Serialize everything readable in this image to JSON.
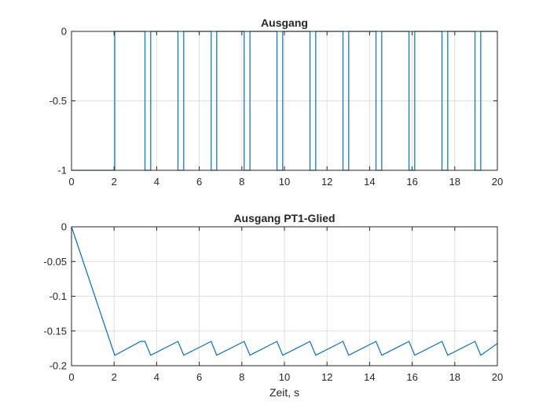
{
  "chart_data": [
    {
      "type": "line",
      "title": "Ausgang",
      "xlabel": "",
      "ylabel": "",
      "xlim": [
        0,
        20
      ],
      "ylim": [
        -1,
        0
      ],
      "xticks": [
        0,
        2,
        4,
        6,
        8,
        10,
        12,
        14,
        16,
        18,
        20
      ],
      "xticklabels": [
        "0",
        "2",
        "4",
        "6",
        "8",
        "10",
        "12",
        "14",
        "16",
        "18",
        "20"
      ],
      "yticks": [
        -1,
        -0.5,
        0
      ],
      "yticklabels": [
        "-1",
        "-0.5",
        "0"
      ],
      "grid": true,
      "color": "#0072bd",
      "series": [
        {
          "x": [
            0,
            2.03,
            2.03,
            3.45,
            3.45,
            3.72,
            3.72,
            5.0,
            5.0,
            5.27,
            5.27,
            6.56,
            6.56,
            6.82,
            6.82,
            8.11,
            8.11,
            8.38,
            8.38,
            9.65,
            9.65,
            9.92,
            9.92,
            11.2,
            11.2,
            11.47,
            11.47,
            12.75,
            12.75,
            13.02,
            13.02,
            14.3,
            14.3,
            14.57,
            14.57,
            15.85,
            15.85,
            16.12,
            16.12,
            17.4,
            17.4,
            17.67,
            17.67,
            18.95,
            18.95,
            19.22,
            19.22,
            20
          ],
          "y": [
            -1,
            -1,
            0,
            0,
            -1,
            -1,
            0,
            0,
            -1,
            -1,
            0,
            0,
            -1,
            -1,
            0,
            0,
            -1,
            -1,
            0,
            0,
            -1,
            -1,
            0,
            0,
            -1,
            -1,
            0,
            0,
            -1,
            -1,
            0,
            0,
            -1,
            -1,
            0,
            0,
            -1,
            -1,
            0,
            0,
            -1,
            -1,
            0,
            0,
            -1,
            -1,
            0,
            0
          ]
        }
      ]
    },
    {
      "type": "line",
      "title": "Ausgang PT1-Glied",
      "xlabel": "Zeit, s",
      "ylabel": "",
      "xlim": [
        0,
        20
      ],
      "ylim": [
        -0.2,
        0
      ],
      "xticks": [
        0,
        2,
        4,
        6,
        8,
        10,
        12,
        14,
        16,
        18,
        20
      ],
      "xticklabels": [
        "0",
        "2",
        "4",
        "6",
        "8",
        "10",
        "12",
        "14",
        "16",
        "18",
        "20"
      ],
      "yticks": [
        -0.2,
        -0.15,
        -0.1,
        -0.05,
        0
      ],
      "yticklabels": [
        "-0.2",
        "-0.15",
        "-0.1",
        "-0.05",
        "0"
      ],
      "grid": true,
      "color": "#0072bd",
      "series": [
        {
          "x": [
            0,
            2.03,
            3.25,
            3.45,
            3.72,
            5.0,
            5.27,
            6.56,
            6.82,
            8.11,
            8.38,
            9.65,
            9.92,
            11.2,
            11.47,
            12.75,
            13.02,
            14.3,
            14.57,
            15.85,
            16.12,
            17.4,
            17.67,
            18.95,
            19.22,
            20
          ],
          "y": [
            0,
            -0.185,
            -0.165,
            -0.165,
            -0.185,
            -0.165,
            -0.185,
            -0.165,
            -0.185,
            -0.165,
            -0.185,
            -0.165,
            -0.185,
            -0.165,
            -0.185,
            -0.165,
            -0.185,
            -0.165,
            -0.185,
            -0.165,
            -0.185,
            -0.165,
            -0.185,
            -0.165,
            -0.185,
            -0.168
          ]
        }
      ]
    }
  ]
}
